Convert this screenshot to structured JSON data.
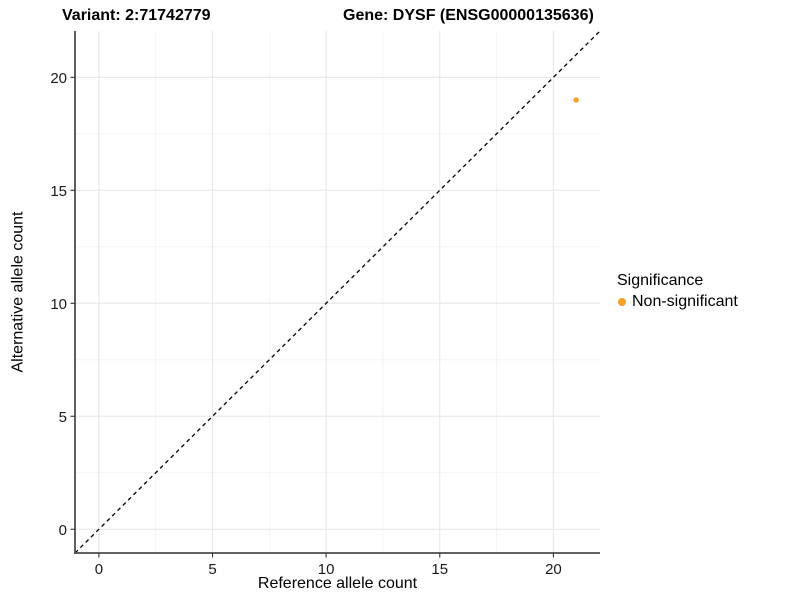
{
  "chart_data": {
    "type": "scatter",
    "titles": [
      "Variant: 2:71742779",
      "Gene: DYSF (ENSG00000135636)"
    ],
    "xlabel": "Reference allele count",
    "ylabel": "Alternative allele count",
    "xlim": [
      -1.05,
      22.05
    ],
    "ylim": [
      -1.05,
      22.05
    ],
    "xticks": [
      0,
      5,
      10,
      15,
      20
    ],
    "yticks": [
      0,
      5,
      10,
      15,
      20
    ],
    "xminor": [
      2.5,
      7.5,
      12.5,
      17.5
    ],
    "yminor": [
      2.5,
      7.5,
      12.5,
      17.5
    ],
    "grid": true,
    "reference_line": {
      "type": "identity",
      "style": "dashed",
      "color": "#000000"
    },
    "series": [
      {
        "name": "Non-significant",
        "color": "#F9A029",
        "points": [
          [
            21,
            19
          ]
        ]
      }
    ],
    "legend": {
      "title": "Significance",
      "position": "right",
      "entries": [
        {
          "label": "Non-significant",
          "color": "#F9A029"
        }
      ]
    },
    "colors": {
      "grid_major": "#E5E5E5",
      "grid_minor": "#F2F2F2",
      "axis_line": "#4D4D4D",
      "tick_mark": "#333333",
      "tick_label": "#1A1A1A",
      "point": "#F9A029"
    }
  }
}
